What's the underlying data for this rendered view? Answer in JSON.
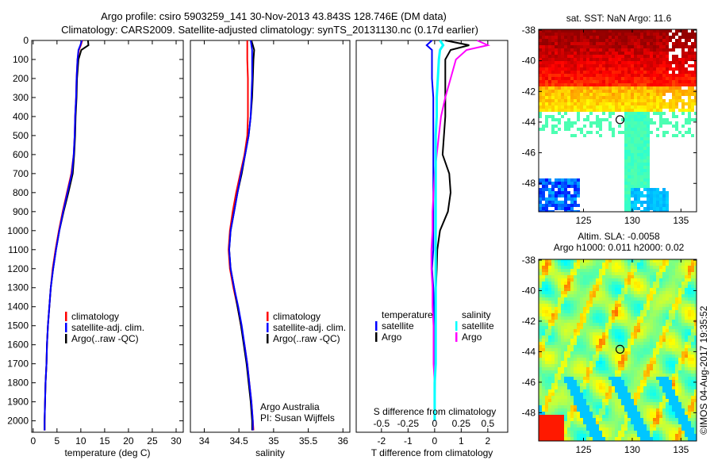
{
  "titles": {
    "line1": "Argo profile: csiro 5903259_141 30-Nov-2013 43.843S 128.746E (DM data)",
    "line2": "Climatology: CARS2009. Satellite-adjusted climatology: synTS_20131130.nc (0.17d earlier)"
  },
  "colors": {
    "climatology": "#ff0000",
    "satellite": "#0000ff",
    "argo": "#000000",
    "sal_satellite": "#00ffff",
    "sal_argo": "#ff00ff"
  },
  "chart_data": [
    {
      "type": "line",
      "name": "temperature",
      "xlabel": "temperature (deg C)",
      "ylabel": "",
      "xlim": [
        -0.3,
        31.5
      ],
      "ylim": [
        2060,
        0
      ],
      "xticks": [
        0,
        5,
        10,
        15,
        20,
        25,
        30
      ],
      "yticks": [
        0,
        100,
        200,
        300,
        400,
        500,
        600,
        700,
        800,
        900,
        1000,
        1100,
        1200,
        1300,
        1400,
        1500,
        1600,
        1700,
        1800,
        1900,
        2000
      ],
      "depth": [
        0,
        25,
        50,
        100,
        200,
        300,
        400,
        500,
        600,
        700,
        800,
        900,
        1000,
        1100,
        1200,
        1300,
        1400,
        1500,
        1600,
        1700,
        1800,
        1900,
        2000,
        2050
      ],
      "series": [
        {
          "name": "climatology",
          "values": [
            10.3,
            10.0,
            9.6,
            9.3,
            9.1,
            9.0,
            8.8,
            8.7,
            8.5,
            8.0,
            7.1,
            6.2,
            5.4,
            4.7,
            4.1,
            3.7,
            3.4,
            3.1,
            2.9,
            2.8,
            2.6,
            2.5,
            2.4,
            2.4
          ]
        },
        {
          "name": "satellite-adj. clim.",
          "values": [
            10.2,
            9.9,
            9.5,
            9.3,
            9.1,
            9.0,
            8.8,
            8.7,
            8.5,
            8.1,
            7.2,
            6.3,
            5.5,
            4.8,
            4.2,
            3.7,
            3.4,
            3.1,
            2.9,
            2.8,
            2.6,
            2.5,
            2.4,
            2.4
          ]
        },
        {
          "name": "Argo(..raw -QC)",
          "values": [
            11.5,
            11.6,
            10.1,
            9.5,
            9.2,
            9.1,
            8.9,
            8.8,
            8.6,
            8.3,
            7.4,
            6.4,
            5.5,
            4.8,
            4.2,
            3.7,
            3.4,
            3.1,
            2.9,
            2.8,
            2.6,
            2.5,
            2.4,
            2.4
          ]
        }
      ],
      "legend": [
        "climatology",
        "satellite-adj. clim.",
        "Argo(..raw -QC)"
      ],
      "legend_placement": "bottom-center"
    },
    {
      "type": "line",
      "name": "salinity",
      "xlabel": "salinity",
      "xlim": [
        33.8,
        36.1
      ],
      "ylim": [
        2060,
        0
      ],
      "xticks": [
        34,
        34.5,
        35,
        35.5,
        36
      ],
      "xticklabels": [
        "34",
        "34.5",
        "35",
        "35.5",
        "36"
      ],
      "depth": [
        0,
        25,
        50,
        100,
        200,
        300,
        400,
        500,
        600,
        700,
        800,
        900,
        1000,
        1100,
        1200,
        1300,
        1400,
        1500,
        1600,
        1700,
        1800,
        1900,
        2000,
        2050
      ],
      "series": [
        {
          "name": "climatology",
          "values": [
            34.62,
            34.62,
            34.62,
            34.62,
            34.63,
            34.63,
            34.63,
            34.62,
            34.58,
            34.52,
            34.46,
            34.41,
            34.37,
            34.35,
            34.37,
            34.42,
            34.48,
            34.53,
            34.58,
            34.62,
            34.65,
            34.68,
            34.7,
            34.71
          ]
        },
        {
          "name": "satellite-adj. clim.",
          "values": [
            34.67,
            34.68,
            34.69,
            34.69,
            34.69,
            34.68,
            34.67,
            34.64,
            34.59,
            34.53,
            34.48,
            34.43,
            34.38,
            34.36,
            34.38,
            34.43,
            34.49,
            34.54,
            34.58,
            34.62,
            34.65,
            34.68,
            34.7,
            34.7
          ]
        },
        {
          "name": "Argo(..raw -QC)",
          "values": [
            34.68,
            34.7,
            34.72,
            34.71,
            34.7,
            34.69,
            34.67,
            34.64,
            34.59,
            34.54,
            34.48,
            34.43,
            34.38,
            34.36,
            34.38,
            34.43,
            34.48,
            34.53,
            34.57,
            34.61,
            34.64,
            34.67,
            34.69,
            34.69
          ]
        }
      ],
      "legend": [
        "climatology",
        "satellite-adj. clim.",
        "Argo(..raw -QC)"
      ],
      "annotation": [
        "Argo Australia",
        "PI: Susan Wijffels"
      ]
    },
    {
      "type": "line",
      "name": "difference",
      "xlabel": "T difference from climatology",
      "x2label": "S difference from climatology",
      "xlim": [
        -2.95,
        2.75
      ],
      "ylim": [
        2060,
        0
      ],
      "xticks": [
        -2,
        -1,
        0,
        1,
        2
      ],
      "x2ticks": [
        "-0.5",
        "-0.25",
        "0",
        "0.25",
        "0.5"
      ],
      "depth": [
        0,
        25,
        50,
        100,
        200,
        300,
        400,
        500,
        600,
        700,
        800,
        900,
        1000,
        1100,
        1200,
        1300,
        1400,
        1500,
        1600,
        1700,
        1800,
        1900,
        2000
      ],
      "series": [
        {
          "name": "temperature satellite",
          "values": [
            -0.1,
            -0.3,
            -0.1,
            -0.1,
            -0.1,
            -0.05,
            -0.05,
            -0.05,
            -0.05,
            -0.05,
            -0.05,
            -0.05,
            -0.05,
            -0.05,
            -0.1,
            -0.05,
            -0.02,
            -0.01,
            0,
            0,
            0,
            0,
            0
          ]
        },
        {
          "name": "temperature Argo",
          "values": [
            0.4,
            1.3,
            0.6,
            0.4,
            0.4,
            0.4,
            0.4,
            0.35,
            0.3,
            0.55,
            0.6,
            0.5,
            0.2,
            0.1,
            0.08,
            0.05,
            0.04,
            0.03,
            0.02,
            0.01,
            0.01,
            0,
            0
          ]
        },
        {
          "name": "salinity satellite",
          "values": [
            0.05,
            0.08,
            0.05,
            0.04,
            0.03,
            0.02,
            0.02,
            0.01,
            0.01,
            0.01,
            0.01,
            0.01,
            0.01,
            0.01,
            0.01,
            0.01,
            0.01,
            0.01,
            0.01,
            0.01,
            0,
            0,
            0
          ]
        },
        {
          "name": "salinity Argo",
          "values": [
            0.4,
            0.5,
            0.3,
            0.2,
            0.15,
            0.1,
            0.06,
            0.04,
            0.02,
            0.0,
            -0.01,
            -0.02,
            -0.02,
            -0.03,
            -0.03,
            -0.02,
            -0.02,
            -0.01,
            -0.01,
            -0.01,
            0,
            0,
            0
          ]
        }
      ],
      "legend": {
        "temperature": "temperature",
        "salinity": "salinity",
        "satellite": "satellite",
        "argo": "Argo"
      }
    },
    {
      "type": "heatmap",
      "name": "sst_map",
      "title": "sat. SST: NaN Argo: 11.6",
      "xticks": [
        125,
        130,
        135
      ],
      "yticks": [
        -38,
        -40,
        -42,
        -44,
        -46,
        -48
      ],
      "float_position": {
        "lon": 128.746,
        "lat": -43.843
      }
    },
    {
      "type": "heatmap",
      "name": "sla_map",
      "title1": "Altim. SLA: -0.0058",
      "title2": "Argo h1000: 0.011 h2000: 0.02",
      "xticks": [
        125,
        130,
        135
      ],
      "yticks": [
        -38,
        -40,
        -42,
        -44,
        -46,
        -48
      ],
      "float_position": {
        "lon": 128.746,
        "lat": -43.843
      }
    }
  ],
  "credit": "©IMOS 04-Aug-2017 19:35:52"
}
